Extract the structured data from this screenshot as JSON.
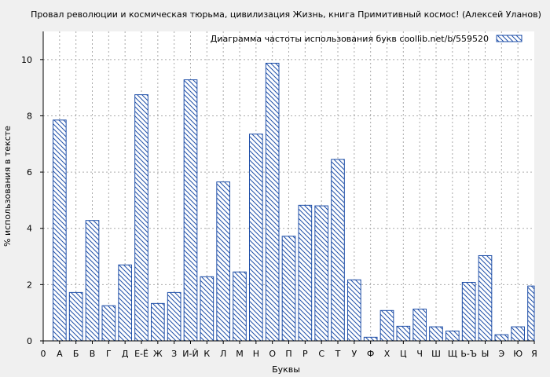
{
  "chart_data": {
    "type": "bar",
    "title": "Провал революции и космическая тюрьма, цивилизация Жизнь, книга Примитивный космос! (Алексей Уланов)",
    "xlabel": "Буквы",
    "ylabel": "% использования в тексте",
    "legend": "Диаграмма частоты использования букв  coollib.net/b/559520",
    "legend_position": "top-right",
    "grid": true,
    "ylim": [
      0,
      11
    ],
    "yticks": [
      0,
      2,
      4,
      6,
      8,
      10
    ],
    "categories": [
      "0",
      "А",
      "Б",
      "В",
      "Г",
      "Д",
      "Е-Ё",
      "Ж",
      "З",
      "И-Й",
      "К",
      "Л",
      "М",
      "Н",
      "О",
      "П",
      "Р",
      "С",
      "Т",
      "У",
      "Ф",
      "Х",
      "Ц",
      "Ч",
      "Ш",
      "Щ",
      "Ь-Ъ",
      "Ы",
      "Э",
      "Ю",
      "Я"
    ],
    "values": [
      0,
      7.85,
      1.72,
      4.28,
      1.25,
      2.7,
      8.75,
      1.33,
      1.72,
      9.28,
      2.28,
      5.65,
      2.45,
      7.35,
      9.87,
      3.72,
      4.82,
      4.8,
      6.45,
      2.17,
      0.13,
      1.08,
      0.52,
      1.13,
      0.5,
      0.35,
      2.08,
      3.03,
      0.22,
      0.5,
      1.95
    ],
    "colors": {
      "bar_stroke": "#1f4fa8",
      "hatch": "#1f4fa8",
      "background": "#f0f0f0",
      "plot_background": "#ffffff"
    }
  }
}
